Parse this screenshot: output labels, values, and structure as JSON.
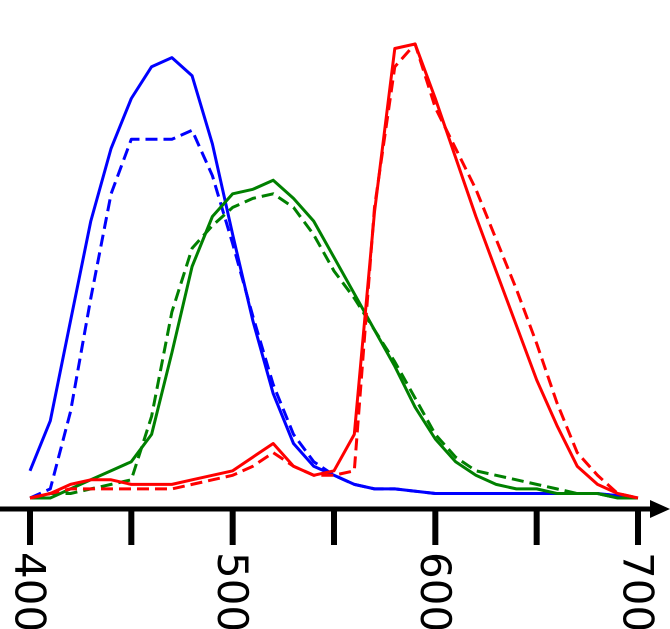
{
  "chart_data": {
    "type": "line",
    "title": "",
    "xlabel": "",
    "ylabel": "",
    "xlim": [
      400,
      700
    ],
    "ylim": [
      0,
      1
    ],
    "x_ticks": [
      400,
      450,
      500,
      550,
      600,
      650,
      700
    ],
    "x_tick_labels": [
      {
        "value": 400,
        "label": "400"
      },
      {
        "value": 500,
        "label": "500"
      },
      {
        "value": 600,
        "label": "600"
      },
      {
        "value": 700,
        "label": "700"
      }
    ],
    "grid": false,
    "legend": "none",
    "tick_label_orientation": "rotated-90-clockwise",
    "series": [
      {
        "color": "#0000ff",
        "style": "solid",
        "x": [
          400,
          410,
          420,
          430,
          440,
          450,
          460,
          470,
          480,
          490,
          500,
          510,
          520,
          530,
          540,
          550,
          560,
          570,
          580,
          600,
          620,
          640,
          660,
          680,
          700
        ],
        "y": [
          0.06,
          0.17,
          0.39,
          0.61,
          0.77,
          0.88,
          0.95,
          0.97,
          0.93,
          0.78,
          0.58,
          0.39,
          0.23,
          0.12,
          0.07,
          0.05,
          0.03,
          0.02,
          0.02,
          0.01,
          0.01,
          0.01,
          0.01,
          0.01,
          0.0
        ]
      },
      {
        "color": "#0000ff",
        "style": "dashed",
        "x": [
          400,
          410,
          420,
          430,
          440,
          450,
          460,
          470,
          480,
          490,
          500,
          510,
          520,
          530,
          540,
          550,
          560,
          570,
          580,
          600,
          620,
          640,
          660,
          680,
          700
        ],
        "y": [
          0.0,
          0.02,
          0.19,
          0.44,
          0.67,
          0.79,
          0.79,
          0.79,
          0.81,
          0.71,
          0.56,
          0.4,
          0.25,
          0.14,
          0.08,
          0.05,
          0.03,
          0.02,
          0.02,
          0.01,
          0.01,
          0.01,
          0.01,
          0.01,
          0.0
        ]
      },
      {
        "color": "#008000",
        "style": "solid",
        "x": [
          400,
          410,
          420,
          430,
          440,
          450,
          460,
          470,
          480,
          490,
          500,
          510,
          520,
          530,
          540,
          550,
          560,
          570,
          580,
          590,
          600,
          610,
          620,
          630,
          640,
          650,
          660,
          670,
          680,
          690,
          700
        ],
        "y": [
          0.0,
          0.0,
          0.02,
          0.04,
          0.06,
          0.08,
          0.14,
          0.32,
          0.51,
          0.62,
          0.67,
          0.68,
          0.7,
          0.66,
          0.61,
          0.53,
          0.45,
          0.37,
          0.29,
          0.2,
          0.13,
          0.08,
          0.05,
          0.03,
          0.02,
          0.02,
          0.01,
          0.01,
          0.01,
          0.0,
          0.0
        ]
      },
      {
        "color": "#008000",
        "style": "dashed",
        "x": [
          400,
          410,
          420,
          430,
          440,
          450,
          460,
          470,
          480,
          490,
          500,
          510,
          520,
          530,
          540,
          550,
          560,
          570,
          580,
          590,
          600,
          610,
          620,
          630,
          640,
          650,
          660,
          670,
          680,
          690,
          700
        ],
        "y": [
          0.0,
          0.01,
          0.01,
          0.02,
          0.03,
          0.04,
          0.18,
          0.41,
          0.55,
          0.6,
          0.64,
          0.66,
          0.67,
          0.64,
          0.58,
          0.5,
          0.44,
          0.37,
          0.3,
          0.22,
          0.14,
          0.09,
          0.06,
          0.05,
          0.04,
          0.03,
          0.02,
          0.01,
          0.01,
          0.0,
          0.0
        ]
      },
      {
        "color": "#ff0000",
        "style": "solid",
        "x": [
          400,
          410,
          420,
          430,
          440,
          450,
          460,
          470,
          480,
          490,
          500,
          510,
          520,
          530,
          540,
          550,
          560,
          570,
          580,
          590,
          600,
          610,
          620,
          630,
          640,
          650,
          660,
          670,
          680,
          690,
          700
        ],
        "y": [
          0.0,
          0.01,
          0.03,
          0.04,
          0.04,
          0.03,
          0.03,
          0.03,
          0.04,
          0.05,
          0.06,
          0.09,
          0.12,
          0.07,
          0.05,
          0.06,
          0.14,
          0.63,
          0.99,
          1.0,
          0.88,
          0.75,
          0.62,
          0.5,
          0.38,
          0.26,
          0.16,
          0.07,
          0.03,
          0.01,
          0.0
        ]
      },
      {
        "color": "#ff0000",
        "style": "dashed",
        "x": [
          400,
          410,
          420,
          430,
          440,
          450,
          460,
          470,
          480,
          490,
          500,
          510,
          520,
          530,
          540,
          550,
          560,
          570,
          580,
          590,
          600,
          610,
          620,
          630,
          640,
          650,
          660,
          670,
          680,
          690,
          700
        ],
        "y": [
          0.0,
          0.01,
          0.02,
          0.02,
          0.02,
          0.02,
          0.02,
          0.02,
          0.03,
          0.04,
          0.05,
          0.07,
          0.1,
          0.07,
          0.05,
          0.05,
          0.06,
          0.64,
          0.95,
          1.0,
          0.86,
          0.77,
          0.68,
          0.57,
          0.46,
          0.34,
          0.21,
          0.1,
          0.05,
          0.01,
          0.0
        ]
      }
    ]
  }
}
